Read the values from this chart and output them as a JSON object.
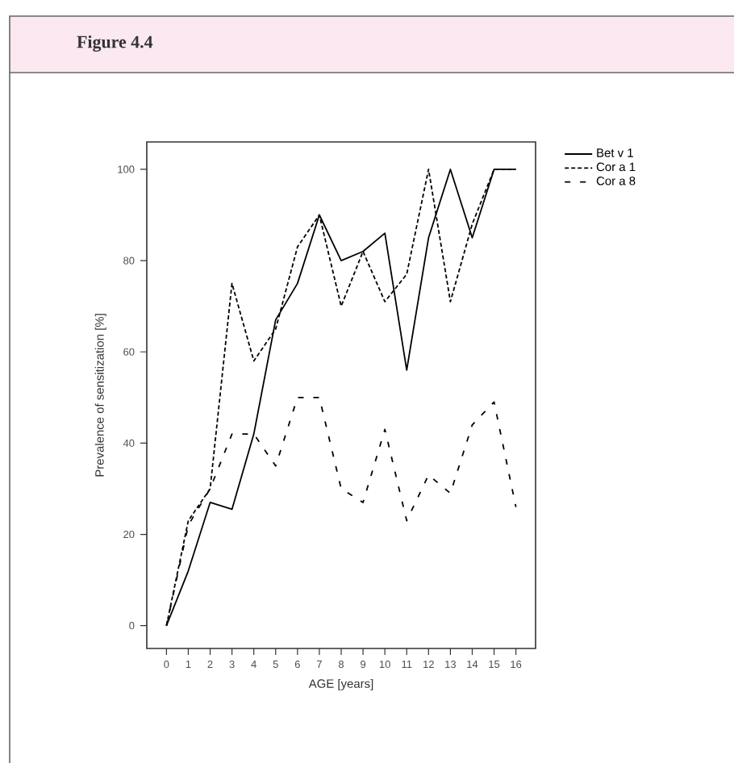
{
  "chart_data": {
    "type": "line",
    "title": "Figure 4.4",
    "xlabel": "AGE [years]",
    "ylabel": "Prevalence of sensitization [%]",
    "x": [
      0,
      1,
      2,
      3,
      4,
      5,
      6,
      7,
      8,
      9,
      10,
      11,
      12,
      13,
      14,
      15,
      16
    ],
    "series": [
      {
        "name": "Bet v 1",
        "color": "#000000",
        "line_style": "solid",
        "values": [
          0,
          12,
          27,
          25.5,
          42,
          67,
          75,
          90,
          80,
          82,
          86,
          56,
          85,
          100,
          85,
          100,
          100
        ]
      },
      {
        "name": "Cor a 1",
        "color": "#000000",
        "line_style": "dashed",
        "values": [
          0,
          23,
          30,
          75,
          58,
          65,
          83,
          90,
          70,
          82,
          71,
          77,
          100,
          71,
          88,
          100,
          100
        ]
      },
      {
        "name": "Cor a 8",
        "color": "#000000",
        "line_style": "dashed",
        "values": [
          0,
          22,
          30,
          42,
          42,
          35,
          50,
          50,
          30,
          27,
          43,
          23,
          33,
          29,
          44,
          49,
          26
        ]
      }
    ],
    "xlim": [
      -0.9,
      16.9
    ],
    "ylim": [
      -5,
      106
    ],
    "xticks": [
      0,
      1,
      2,
      3,
      4,
      5,
      6,
      7,
      8,
      9,
      10,
      11,
      12,
      13,
      14,
      15,
      16
    ],
    "yticks": [
      0,
      20,
      40,
      60,
      80,
      100
    ],
    "grid": false,
    "legend": "top right",
    "marker": "none"
  }
}
